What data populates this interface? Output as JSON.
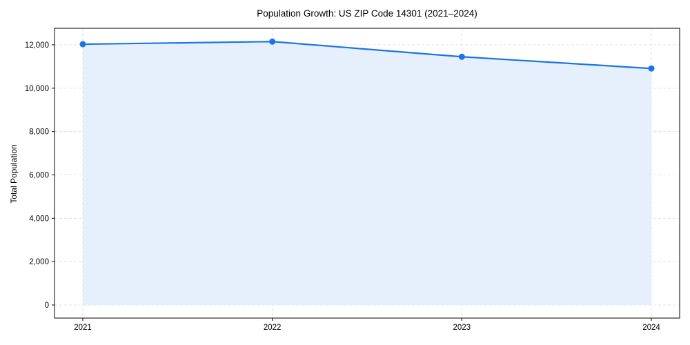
{
  "chart_data": {
    "type": "line",
    "title": "Population Growth: US ZIP Code 14301 (2021–2024)",
    "xlabel": "",
    "ylabel": "Total Population",
    "categories": [
      "2021",
      "2022",
      "2023",
      "2024"
    ],
    "series": [
      {
        "name": "Total Population",
        "values": [
          12030,
          12150,
          11450,
          10910
        ],
        "color": "#1a73e8",
        "fill": "#e3eefc"
      }
    ],
    "yticks": [
      0,
      2000,
      4000,
      6000,
      8000,
      10000,
      12000
    ],
    "ytick_labels": [
      "0",
      "2,000",
      "4,000",
      "6,000",
      "8,000",
      "10,000",
      "12,000"
    ],
    "ylim": [
      -600,
      12750
    ],
    "grid": true,
    "legend": null
  },
  "colors": {
    "line": "#1a73e8",
    "area": "#e3eefc",
    "grid": "#d9d9d9",
    "axis": "#000000"
  }
}
